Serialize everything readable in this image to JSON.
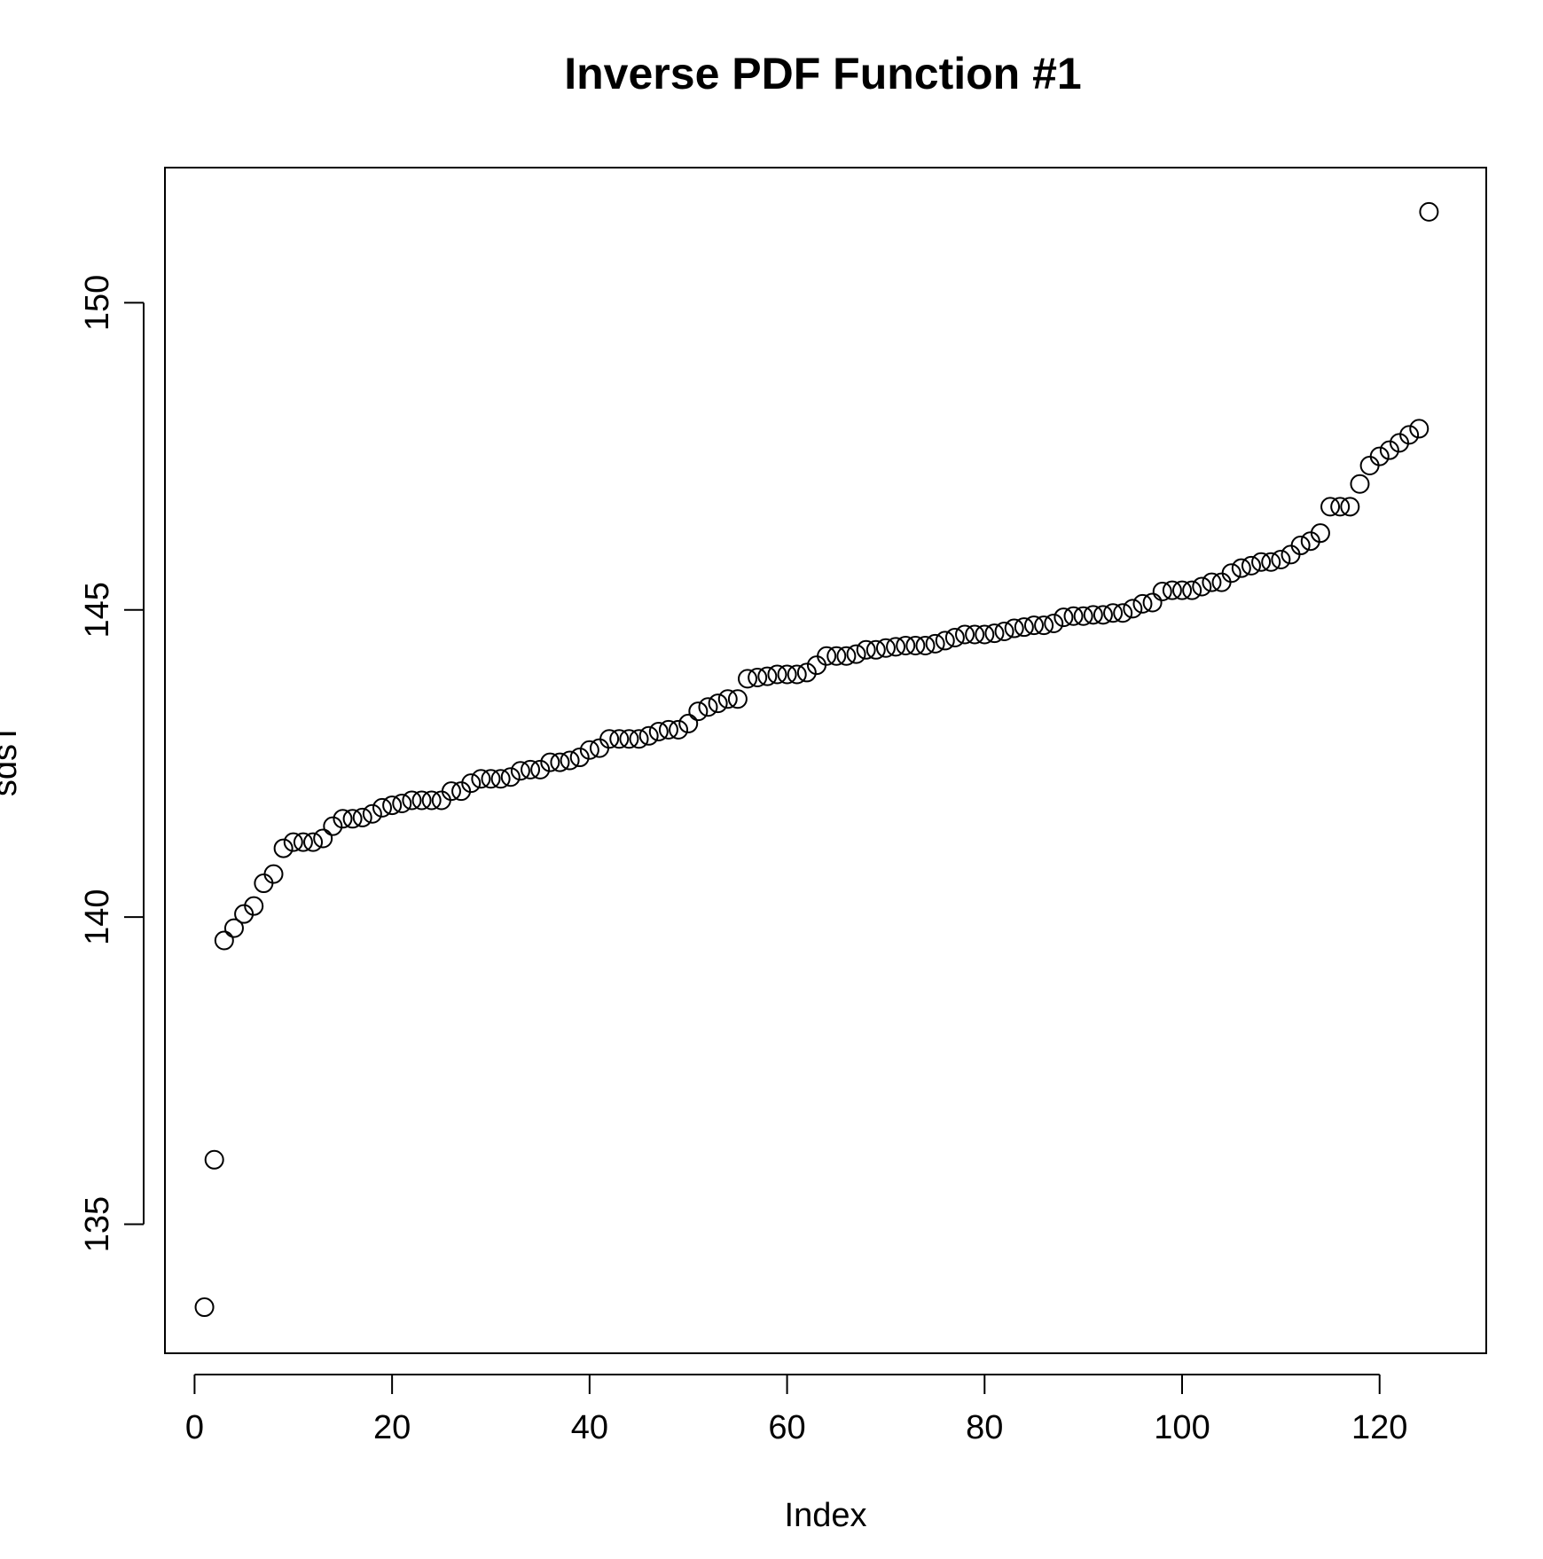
{
  "chart_data": {
    "type": "scatter",
    "title": "Inverse PDF Function #1",
    "xlabel": "Index",
    "ylabel": "sdsT",
    "xlim": [
      -3,
      130.8
    ],
    "ylim": [
      132.9,
      152.2
    ],
    "xticks": [
      0,
      20,
      40,
      60,
      80,
      100,
      120
    ],
    "yticks": [
      135,
      140,
      145,
      150
    ],
    "grid": false,
    "legend": "none",
    "series": [
      {
        "name": "sdsT",
        "x": [
          1,
          2,
          3,
          4,
          5,
          6,
          7,
          8,
          9,
          10,
          11,
          12,
          13,
          14,
          15,
          16,
          17,
          18,
          19,
          20,
          21,
          22,
          23,
          24,
          25,
          26,
          27,
          28,
          29,
          30,
          31,
          32,
          33,
          34,
          35,
          36,
          37,
          38,
          39,
          40,
          41,
          42,
          43,
          44,
          45,
          46,
          47,
          48,
          49,
          50,
          51,
          52,
          53,
          54,
          55,
          56,
          57,
          58,
          59,
          60,
          61,
          62,
          63,
          64,
          65,
          66,
          67,
          68,
          69,
          70,
          71,
          72,
          73,
          74,
          75,
          76,
          77,
          78,
          79,
          80,
          81,
          82,
          83,
          84,
          85,
          86,
          87,
          88,
          89,
          90,
          91,
          92,
          93,
          94,
          95,
          96,
          97,
          98,
          99,
          100,
          101,
          102,
          103,
          104,
          105,
          106,
          107,
          108,
          109,
          110,
          111,
          112,
          113,
          114,
          115,
          116,
          117,
          118,
          119,
          120,
          121,
          122,
          123,
          124,
          125
        ],
        "values": [
          133.65,
          136.05,
          139.62,
          139.82,
          140.05,
          140.18,
          140.55,
          140.7,
          141.12,
          141.22,
          141.22,
          141.22,
          141.28,
          141.48,
          141.6,
          141.6,
          141.62,
          141.68,
          141.78,
          141.82,
          141.85,
          141.9,
          141.9,
          141.9,
          141.9,
          142.05,
          142.05,
          142.18,
          142.25,
          142.25,
          142.25,
          142.28,
          142.38,
          142.4,
          142.4,
          142.52,
          142.52,
          142.55,
          142.6,
          142.72,
          142.75,
          142.9,
          142.9,
          142.9,
          142.9,
          142.95,
          143.02,
          143.05,
          143.05,
          143.15,
          143.35,
          143.42,
          143.48,
          143.55,
          143.55,
          143.88,
          143.9,
          143.92,
          143.95,
          143.95,
          143.95,
          143.98,
          144.1,
          144.25,
          144.25,
          144.25,
          144.28,
          144.35,
          144.35,
          144.38,
          144.4,
          144.42,
          144.42,
          144.42,
          144.45,
          144.5,
          144.55,
          144.6,
          144.6,
          144.6,
          144.62,
          144.65,
          144.7,
          144.72,
          144.75,
          144.75,
          144.78,
          144.88,
          144.9,
          144.9,
          144.92,
          144.92,
          144.95,
          144.95,
          145.02,
          145.1,
          145.12,
          145.3,
          145.32,
          145.32,
          145.32,
          145.38,
          145.45,
          145.45,
          145.6,
          145.68,
          145.72,
          145.78,
          145.78,
          145.82,
          145.9,
          146.05,
          146.12,
          146.25,
          146.68,
          146.68,
          146.68,
          147.05,
          147.35,
          147.5,
          147.6,
          147.72,
          147.85,
          147.95,
          151.48
        ]
      }
    ]
  }
}
